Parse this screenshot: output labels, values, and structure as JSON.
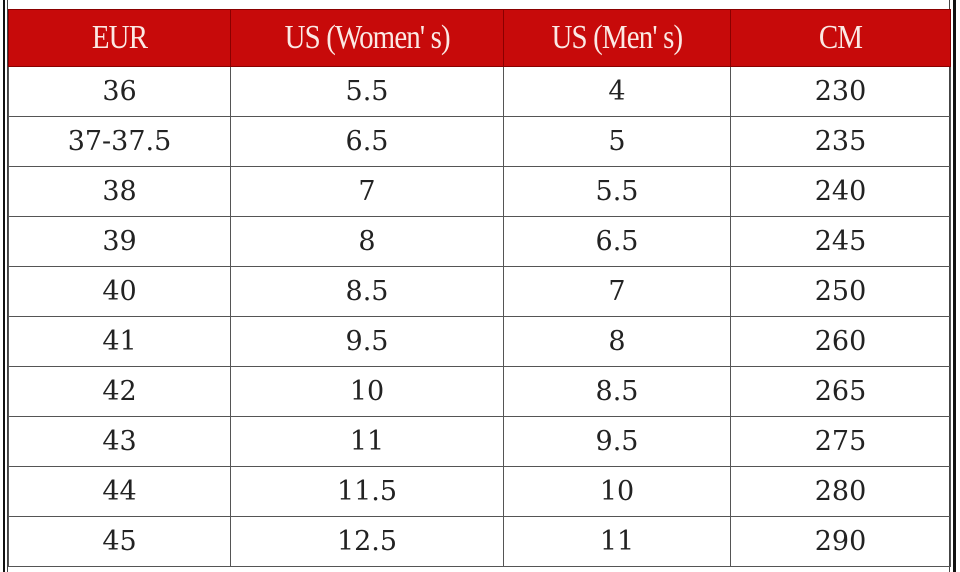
{
  "table": {
    "header_color": "#c70a0a",
    "columns": [
      "EUR",
      "US (Women' s)",
      "US (Men' s)",
      "CM"
    ],
    "rows": [
      [
        "36",
        "5.5",
        "4",
        "230"
      ],
      [
        "37-37.5",
        "6.5",
        "5",
        "235"
      ],
      [
        "38",
        "7",
        "5.5",
        "240"
      ],
      [
        "39",
        "8",
        "6.5",
        "245"
      ],
      [
        "40",
        "8.5",
        "7",
        "250"
      ],
      [
        "41",
        "9.5",
        "8",
        "260"
      ],
      [
        "42",
        "10",
        "8.5",
        "265"
      ],
      [
        "43",
        "11",
        "9.5",
        "275"
      ],
      [
        "44",
        "11.5",
        "10",
        "280"
      ],
      [
        "45",
        "12.5",
        "11",
        "290"
      ]
    ]
  }
}
